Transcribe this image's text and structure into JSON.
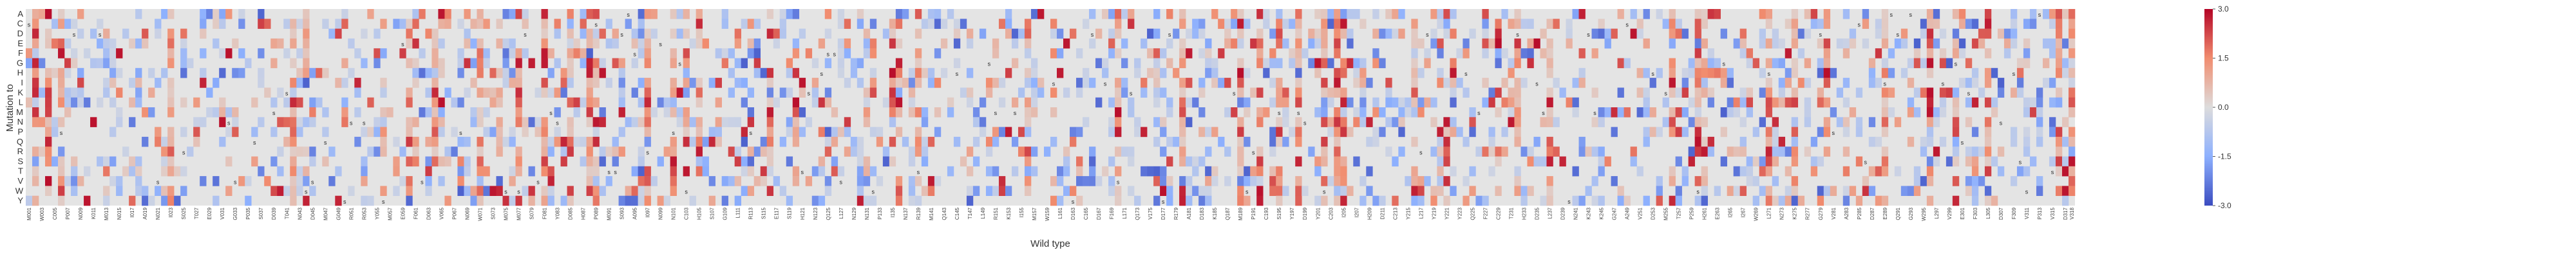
{
  "chart_data": {
    "type": "heatmap",
    "title": "",
    "xlabel": "Wild type",
    "ylabel": "Mutation to",
    "rows": [
      "A",
      "C",
      "D",
      "E",
      "F",
      "G",
      "H",
      "I",
      "K",
      "L",
      "M",
      "N",
      "P",
      "Q",
      "R",
      "S",
      "T",
      "V",
      "W",
      "Y"
    ],
    "n_columns": 318,
    "first_column_label": "M001",
    "last_column_label": "V318",
    "x_tick_step": 2,
    "color_scale": {
      "min": -3.0,
      "max": 3.0,
      "colormap": "coolwarm",
      "ticks": [
        3.0,
        1.5,
        0.0,
        -1.5,
        -3.0
      ]
    },
    "missing_color": "#e4e4e4",
    "annotation_marker": "s",
    "grid": false,
    "legend": "colorbar-right",
    "seed": 20240607
  }
}
